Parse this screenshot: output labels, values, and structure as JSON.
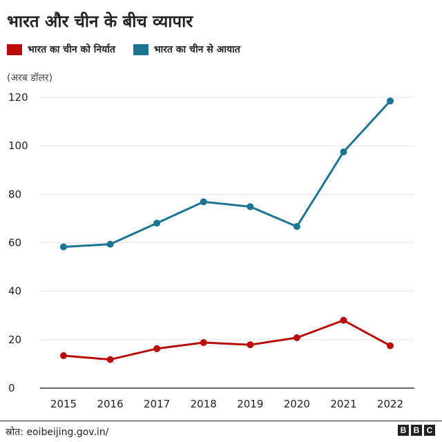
{
  "title": "भारत और चीन के बीच व्यापार",
  "unit_label": "(अरब डॉलर)",
  "source": "स्रोत: eoibeijing.gov.in/",
  "logo": {
    "letters": [
      "B",
      "B",
      "C"
    ]
  },
  "colors": {
    "exports": "#b80c09",
    "imports": "#1b7491",
    "grid": "#e4e4e4",
    "baseline": "#333333"
  },
  "chart_data": {
    "type": "line",
    "x": [
      "2015",
      "2016",
      "2017",
      "2018",
      "2019",
      "2020",
      "2021",
      "2022"
    ],
    "ylim": [
      0,
      120
    ],
    "yticks": [
      0,
      20,
      40,
      60,
      80,
      100,
      120
    ],
    "grid": true,
    "legend_position": "top-left",
    "series": [
      {
        "name": "भारत का चीन को निर्यात",
        "color": "#b80c09",
        "values": [
          13.4,
          11.8,
          16.3,
          18.8,
          17.9,
          20.8,
          28.0,
          17.5
        ]
      },
      {
        "name": "भारत का चीन से आयात",
        "color": "#1b7491",
        "values": [
          58.3,
          59.4,
          68.1,
          76.9,
          74.9,
          66.7,
          97.5,
          118.5
        ]
      }
    ]
  }
}
